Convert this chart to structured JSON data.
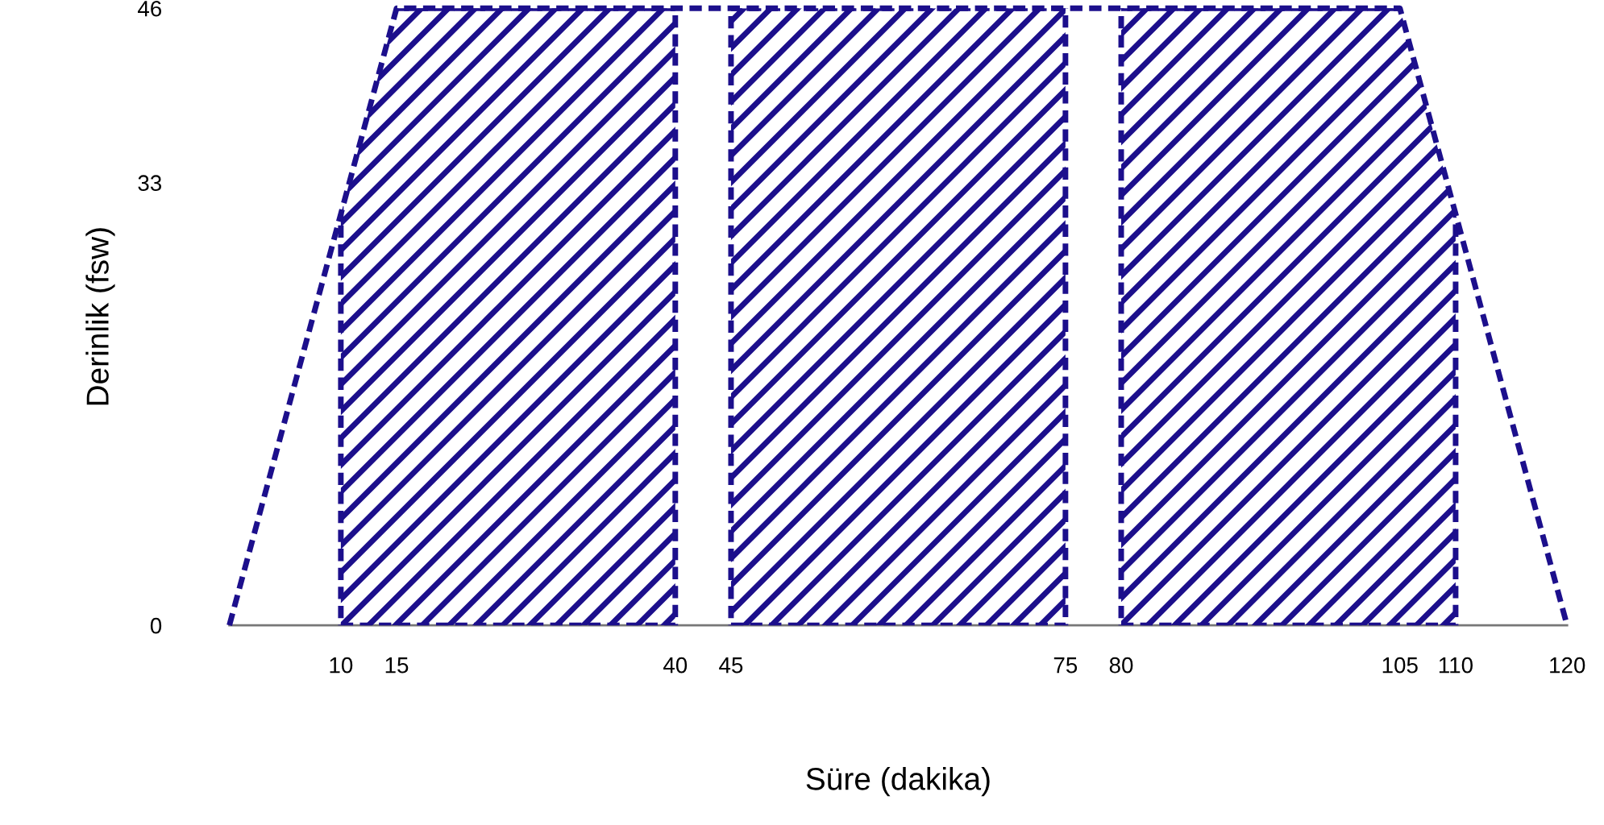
{
  "chart_data": {
    "type": "line",
    "xlabel": "Süre (dakika)",
    "ylabel": "Derinlik (fsw)",
    "x": [
      0,
      15,
      105,
      120
    ],
    "series": [
      {
        "values": [
          0,
          46,
          46,
          0
        ],
        "color": "#1c0f8c"
      }
    ],
    "line_style": "dashed",
    "marker": "none",
    "xlim": [
      0,
      120
    ],
    "ylim": [
      0,
      46
    ],
    "xticks": [
      10,
      15,
      40,
      45,
      75,
      80,
      105,
      110,
      120
    ],
    "yticks": [
      0,
      33,
      46
    ],
    "bands": [
      {
        "axis": "x",
        "from": 10,
        "to": 40,
        "color": "#1c0f8c"
      },
      {
        "axis": "x",
        "from": 45,
        "to": 75,
        "color": "#1c0f8c"
      },
      {
        "axis": "x",
        "from": 80,
        "to": 110,
        "color": "#1c0f8c"
      }
    ],
    "grid": false
  }
}
